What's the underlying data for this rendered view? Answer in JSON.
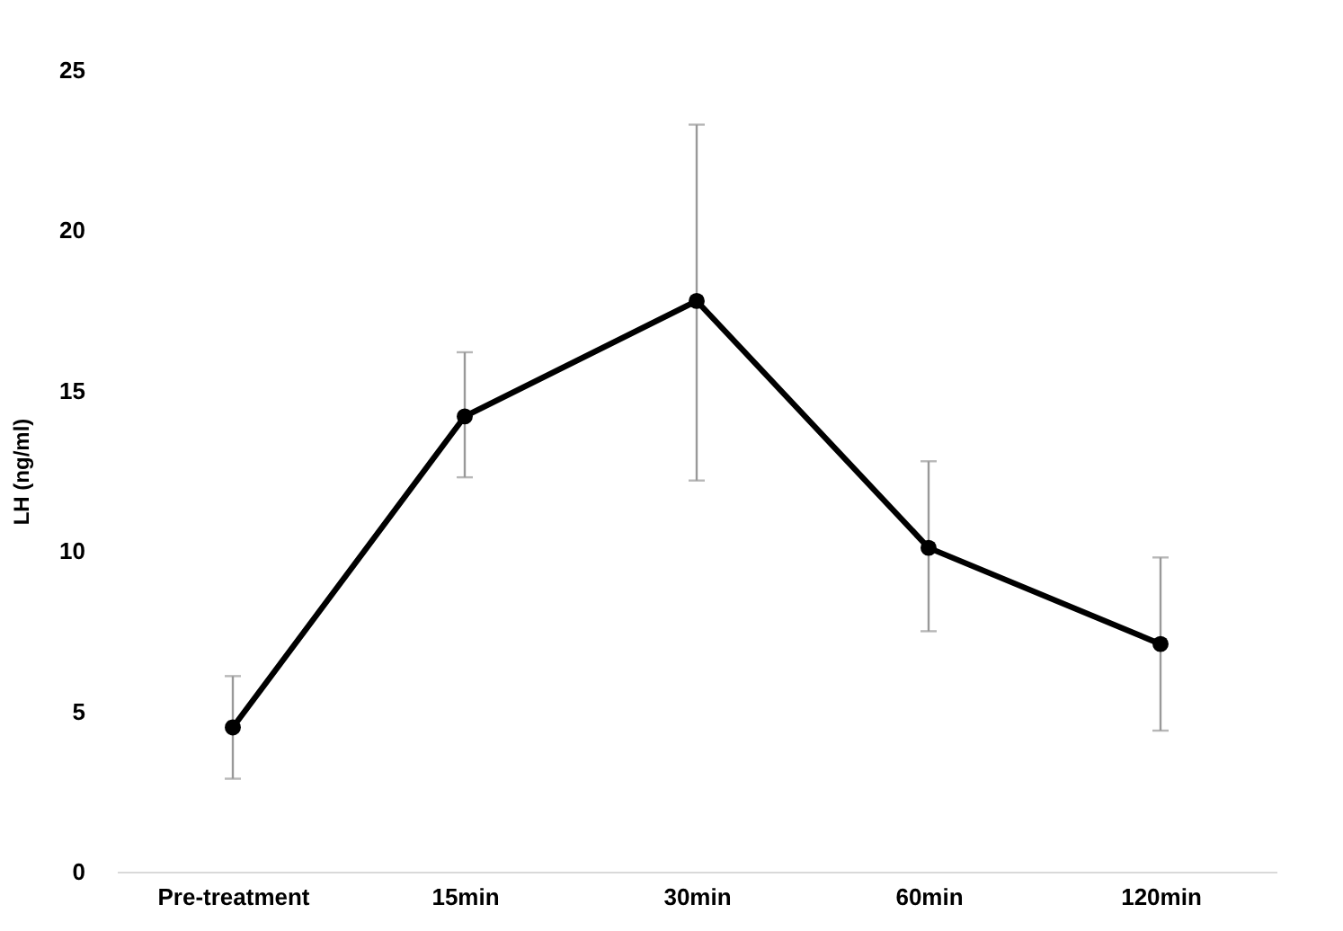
{
  "chart_data": {
    "type": "line",
    "ylabel": "LH (ng/ml)",
    "categories": [
      "Pre-treatment",
      "15min",
      "30min",
      "60min",
      "120min"
    ],
    "series": [
      {
        "color": "#000000",
        "values": [
          4.5,
          14.2,
          17.8,
          10.1,
          7.1
        ],
        "errors": [
          [
            2.9,
            6.1
          ],
          [
            12.3,
            16.2
          ],
          [
            12.2,
            23.3
          ],
          [
            7.5,
            12.8
          ],
          [
            4.4,
            9.8
          ]
        ]
      }
    ],
    "ylim": [
      0,
      25
    ],
    "yticks": [
      0,
      5,
      10,
      15,
      20,
      25
    ],
    "grid": false,
    "marker": "circle",
    "line_style": "solid"
  }
}
